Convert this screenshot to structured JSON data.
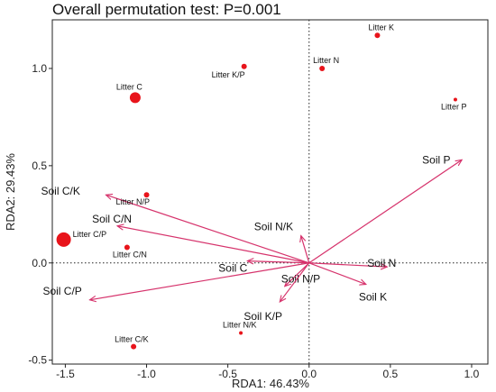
{
  "chart_data": {
    "type": "scatter",
    "title": "Overall permutation test: P=0.001",
    "xlabel": "RDA1: 46.43%",
    "ylabel": "RDA2: 29.43%",
    "xlim": [
      -1.58,
      1.1
    ],
    "ylim": [
      -0.52,
      1.25
    ],
    "x_ticks": [
      "-1.5",
      "-1.0",
      "-0.5",
      "0.0",
      "0.5",
      "1.0"
    ],
    "x_tick_values": [
      -1.5,
      -1.0,
      -0.5,
      0.0,
      0.5,
      1.0
    ],
    "y_ticks": [
      "-0.5",
      "0.0",
      "0.5",
      "1.0"
    ],
    "y_tick_values": [
      -0.5,
      0.0,
      0.5,
      1.0
    ],
    "grid": false,
    "zero_lines": true,
    "point_color": "#e8141b",
    "arrow_color": "#d6336c",
    "points": [
      {
        "label": "Litter K",
        "x": 0.42,
        "y": 1.17,
        "size": "small"
      },
      {
        "label": "Litter N",
        "x": 0.08,
        "y": 1.0,
        "size": "small"
      },
      {
        "label": "Litter K/P",
        "x": -0.4,
        "y": 1.01,
        "size": "small"
      },
      {
        "label": "Litter C",
        "x": -1.07,
        "y": 0.85,
        "size": "large"
      },
      {
        "label": "Litter P",
        "x": 0.9,
        "y": 0.84,
        "size": "tiny"
      },
      {
        "label": "Litter N/P",
        "x": -1.0,
        "y": 0.35,
        "size": "small"
      },
      {
        "label": "Litter C/P",
        "x": -1.51,
        "y": 0.12,
        "size": "xlarge"
      },
      {
        "label": "Litter C/N",
        "x": -1.12,
        "y": 0.08,
        "size": "small"
      },
      {
        "label": "Litter N/K",
        "x": -0.42,
        "y": -0.36,
        "size": "tiny"
      },
      {
        "label": "Litter C/K",
        "x": -1.08,
        "y": -0.43,
        "size": "small"
      }
    ],
    "arrows": [
      {
        "label": "Soil P",
        "x": 0.94,
        "y": 0.53
      },
      {
        "label": "Soil C/K",
        "x": -1.25,
        "y": 0.35
      },
      {
        "label": "Soil C/N",
        "x": -1.18,
        "y": 0.19
      },
      {
        "label": "Soil N/K",
        "x": -0.05,
        "y": 0.14
      },
      {
        "label": "Soil N",
        "x": 0.48,
        "y": -0.02
      },
      {
        "label": "Soil C",
        "x": -0.38,
        "y": 0.01
      },
      {
        "label": "Soil N/P",
        "x": -0.15,
        "y": -0.12
      },
      {
        "label": "Soil K",
        "x": 0.35,
        "y": -0.11
      },
      {
        "label": "Soil C/P",
        "x": -1.35,
        "y": -0.19
      },
      {
        "label": "Soil K/P",
        "x": -0.18,
        "y": -0.2
      }
    ]
  }
}
